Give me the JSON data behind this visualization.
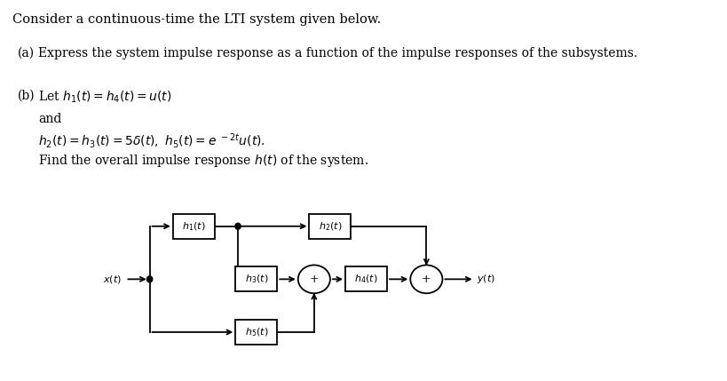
{
  "bg_color": "#ffffff",
  "text_color": "#000000",
  "title": "Consider a continuous-time the LTI system given below.",
  "part_a_label": "(a)",
  "part_a_text": "Express the system impulse response as a function of the impulse responses of the subsystems.",
  "part_b_label": "(b)",
  "part_b_text1": "Let $h_1(t) = h_4(t) = u(t)$",
  "part_b_and": "and",
  "part_b_text2": "$h_2(t) = h_3(t) = 5\\delta(t),\\ h_5(t) = e^{\\ -2t}u(t).$",
  "part_b_find": "Find the overall impulse response $h(t)$ of the system.",
  "lw": 1.3
}
